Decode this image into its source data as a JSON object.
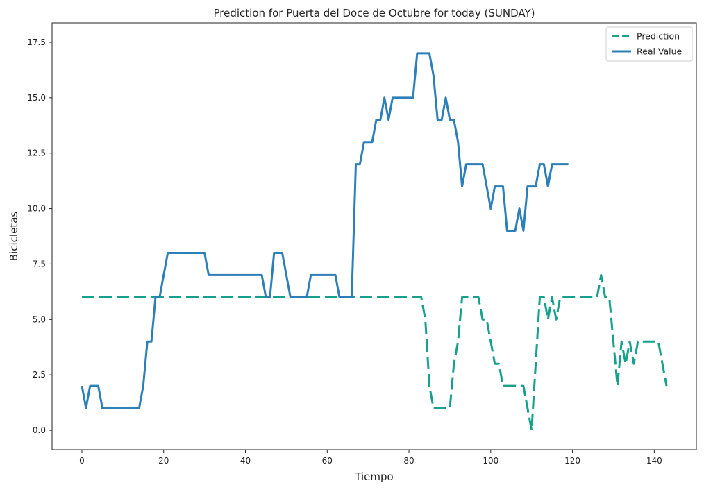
{
  "chart_data": {
    "type": "line",
    "title": "Prediction for Puerta del Doce de Octubre for today (SUNDAY)",
    "xlabel": "Tiempo",
    "ylabel": "Bicicletas",
    "xlim": [
      -7.3,
      150.3
    ],
    "ylim": [
      -0.875,
      18.375
    ],
    "xticks": [
      0,
      20,
      40,
      60,
      80,
      100,
      120,
      140
    ],
    "xtick_labels": [
      "0",
      "20",
      "40",
      "60",
      "80",
      "100",
      "120",
      "140"
    ],
    "yticks": [
      0,
      2.5,
      5,
      7.5,
      10,
      12.5,
      15,
      17.5
    ],
    "ytick_labels": [
      "0.0",
      "2.5",
      "5.0",
      "7.5",
      "10.0",
      "12.5",
      "15.0",
      "17.5"
    ],
    "grid": false,
    "legend_position": "top-right",
    "series": [
      {
        "name": "Prediction",
        "color": "#17a08c",
        "style": "dashed",
        "points": [
          [
            0,
            6
          ],
          [
            82,
            6
          ],
          [
            83,
            6
          ],
          [
            84,
            5
          ],
          [
            85,
            2
          ],
          [
            86,
            1
          ],
          [
            87,
            1
          ],
          [
            88,
            1
          ],
          [
            89,
            1
          ],
          [
            90,
            1
          ],
          [
            91,
            3
          ],
          [
            92,
            4
          ],
          [
            93,
            6
          ],
          [
            94,
            6
          ],
          [
            95,
            6
          ],
          [
            96,
            6
          ],
          [
            97,
            6
          ],
          [
            98,
            5
          ],
          [
            99,
            5
          ],
          [
            100,
            4
          ],
          [
            101,
            3
          ],
          [
            102,
            3
          ],
          [
            103,
            2
          ],
          [
            104,
            2
          ],
          [
            105,
            2
          ],
          [
            106,
            2
          ],
          [
            107,
            2
          ],
          [
            108,
            2
          ],
          [
            109,
            1
          ],
          [
            110,
            0
          ],
          [
            111,
            3
          ],
          [
            112,
            6
          ],
          [
            113,
            6
          ],
          [
            114,
            5
          ],
          [
            115,
            6
          ],
          [
            116,
            5
          ],
          [
            117,
            6
          ],
          [
            118,
            6
          ],
          [
            119,
            6
          ],
          [
            120,
            6
          ],
          [
            121,
            6
          ],
          [
            122,
            6
          ],
          [
            123,
            6
          ],
          [
            124,
            6
          ],
          [
            125,
            6
          ],
          [
            126,
            6
          ],
          [
            127,
            7
          ],
          [
            128,
            6
          ],
          [
            129,
            6
          ],
          [
            130,
            4
          ],
          [
            131,
            2
          ],
          [
            132,
            4
          ],
          [
            133,
            3
          ],
          [
            134,
            4
          ],
          [
            135,
            3
          ],
          [
            136,
            4
          ],
          [
            137,
            4
          ],
          [
            138,
            4
          ],
          [
            139,
            4
          ],
          [
            140,
            4
          ],
          [
            141,
            4
          ],
          [
            142,
            3
          ],
          [
            143,
            2
          ]
        ]
      },
      {
        "name": "Real Value",
        "color": "#2c7fb8",
        "style": "solid",
        "points": [
          [
            0,
            2
          ],
          [
            1,
            1
          ],
          [
            2,
            2
          ],
          [
            3,
            2
          ],
          [
            4,
            2
          ],
          [
            5,
            1
          ],
          [
            6,
            1
          ],
          [
            7,
            1
          ],
          [
            8,
            1
          ],
          [
            9,
            1
          ],
          [
            10,
            1
          ],
          [
            11,
            1
          ],
          [
            12,
            1
          ],
          [
            13,
            1
          ],
          [
            14,
            1
          ],
          [
            15,
            2
          ],
          [
            16,
            4
          ],
          [
            17,
            4
          ],
          [
            18,
            6
          ],
          [
            19,
            6
          ],
          [
            20,
            7
          ],
          [
            21,
            8
          ],
          [
            22,
            8
          ],
          [
            23,
            8
          ],
          [
            24,
            8
          ],
          [
            25,
            8
          ],
          [
            26,
            8
          ],
          [
            27,
            8
          ],
          [
            28,
            8
          ],
          [
            29,
            8
          ],
          [
            30,
            8
          ],
          [
            31,
            7
          ],
          [
            32,
            7
          ],
          [
            33,
            7
          ],
          [
            34,
            7
          ],
          [
            35,
            7
          ],
          [
            36,
            7
          ],
          [
            37,
            7
          ],
          [
            38,
            7
          ],
          [
            39,
            7
          ],
          [
            40,
            7
          ],
          [
            41,
            7
          ],
          [
            42,
            7
          ],
          [
            43,
            7
          ],
          [
            44,
            7
          ],
          [
            45,
            6
          ],
          [
            46,
            6
          ],
          [
            47,
            8
          ],
          [
            48,
            8
          ],
          [
            49,
            8
          ],
          [
            50,
            7
          ],
          [
            51,
            6
          ],
          [
            52,
            6
          ],
          [
            53,
            6
          ],
          [
            54,
            6
          ],
          [
            55,
            6
          ],
          [
            56,
            7
          ],
          [
            57,
            7
          ],
          [
            58,
            7
          ],
          [
            59,
            7
          ],
          [
            60,
            7
          ],
          [
            61,
            7
          ],
          [
            62,
            7
          ],
          [
            63,
            6
          ],
          [
            64,
            6
          ],
          [
            65,
            6
          ],
          [
            66,
            6
          ],
          [
            67,
            12
          ],
          [
            68,
            12
          ],
          [
            69,
            13
          ],
          [
            70,
            13
          ],
          [
            71,
            13
          ],
          [
            72,
            14
          ],
          [
            73,
            14
          ],
          [
            74,
            15
          ],
          [
            75,
            14
          ],
          [
            76,
            15
          ],
          [
            77,
            15
          ],
          [
            78,
            15
          ],
          [
            79,
            15
          ],
          [
            80,
            15
          ],
          [
            81,
            15
          ],
          [
            82,
            17
          ],
          [
            83,
            17
          ],
          [
            84,
            17
          ],
          [
            85,
            17
          ],
          [
            86,
            16
          ],
          [
            87,
            14
          ],
          [
            88,
            14
          ],
          [
            89,
            15
          ],
          [
            90,
            14
          ],
          [
            91,
            14
          ],
          [
            92,
            13
          ],
          [
            93,
            11
          ],
          [
            94,
            12
          ],
          [
            95,
            12
          ],
          [
            96,
            12
          ],
          [
            97,
            12
          ],
          [
            98,
            12
          ],
          [
            99,
            11
          ],
          [
            100,
            10
          ],
          [
            101,
            11
          ],
          [
            102,
            11
          ],
          [
            103,
            11
          ],
          [
            104,
            9
          ],
          [
            105,
            9
          ],
          [
            106,
            9
          ],
          [
            107,
            10
          ],
          [
            108,
            9
          ],
          [
            109,
            11
          ],
          [
            110,
            11
          ],
          [
            111,
            11
          ],
          [
            112,
            12
          ],
          [
            113,
            12
          ],
          [
            114,
            11
          ],
          [
            115,
            12
          ],
          [
            116,
            12
          ],
          [
            117,
            12
          ],
          [
            118,
            12
          ],
          [
            119,
            12
          ]
        ]
      }
    ]
  }
}
